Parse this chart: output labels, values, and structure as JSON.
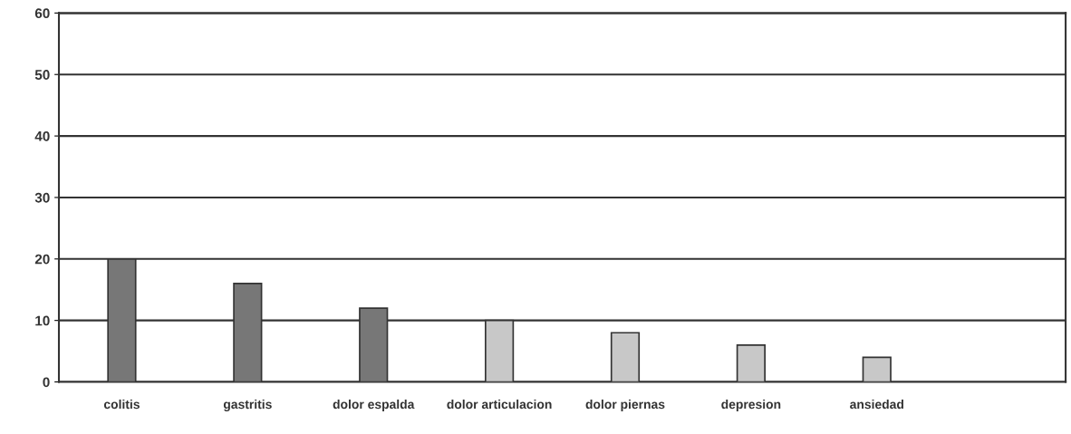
{
  "chart_data": {
    "type": "bar",
    "categories": [
      "colitis",
      "gastritis",
      "dolor espalda",
      "dolor articulacion",
      "dolor piernas",
      "depresion",
      "ansiedad",
      null
    ],
    "values": [
      20,
      16,
      12,
      10,
      8,
      6,
      4,
      null
    ],
    "colors": [
      "#777777",
      "#777777",
      "#777777",
      "#c8c8c8",
      "#c8c8c8",
      "#c8c8c8",
      "#c8c8c8",
      "#c8c8c8"
    ],
    "ylim": [
      0,
      60
    ],
    "yticks": [
      0,
      10,
      20,
      30,
      40,
      50,
      60
    ],
    "grid": "y"
  }
}
